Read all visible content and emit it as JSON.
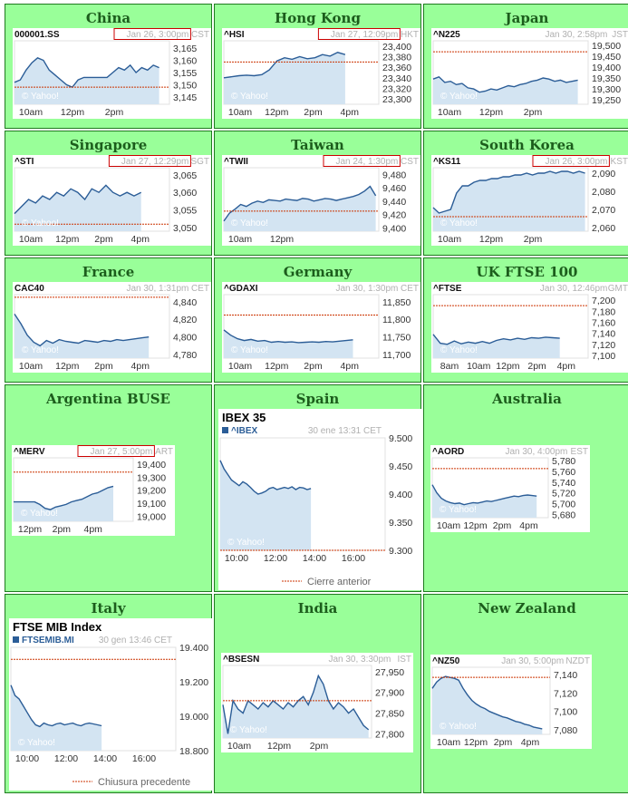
{
  "colors": {
    "cell_background": "#99ff99",
    "title_text": "#1c5d1c",
    "line": "#2b5d97",
    "fill": "#d3e4f2",
    "previous_close": "#cc3300",
    "highlight_box": "#cc0000"
  },
  "cells": [
    {
      "title": "China",
      "symbol": "000001.SS",
      "time": "Jan 26, 3:00pm",
      "tz": "CST",
      "highlight": true,
      "watermark": "© Yahoo!",
      "chart_data": {
        "type": "area",
        "title": "",
        "ylim": [
          3142,
          3168
        ],
        "xlabels": [
          "10am",
          "12pm",
          "2pm"
        ],
        "yticks": [
          "3,165",
          "3,160",
          "3,155",
          "3,150",
          "3,145"
        ],
        "ytick_values": [
          3165,
          3160,
          3155,
          3150,
          3145
        ],
        "previous_close": 3149,
        "values": [
          3151,
          3152,
          3156,
          3159,
          3161,
          3160,
          3156,
          3154,
          3152,
          3150,
          3149,
          3152,
          3153,
          3153,
          3153,
          3153,
          3153,
          3155,
          3157,
          3156,
          3158,
          3155,
          3157,
          3156,
          3158,
          3157
        ]
      }
    },
    {
      "title": "Hong Kong",
      "symbol": "^HSI",
      "time": "Jan 27, 12:09pm",
      "tz": "HKT",
      "highlight": true,
      "watermark": "© Yahoo!",
      "chart_data": {
        "type": "area",
        "title": "",
        "ylim": [
          23290,
          23410
        ],
        "xlabels": [
          "10am",
          "12pm",
          "2pm",
          "4pm"
        ],
        "yticks": [
          "23,400",
          "23,380",
          "23,360",
          "23,340",
          "23,320",
          "23,300"
        ],
        "ytick_values": [
          23400,
          23380,
          23360,
          23340,
          23320,
          23300
        ],
        "previous_close": 23370,
        "values": [
          23340,
          23342,
          23344,
          23345,
          23344,
          23346,
          23355,
          23372,
          23378,
          23375,
          23380,
          23376,
          23378,
          23384,
          23381,
          23388,
          23384
        ]
      }
    },
    {
      "title": "Japan",
      "symbol": "^N225",
      "time": "Jan 30, 2:58pm",
      "tz": "JST",
      "highlight": false,
      "watermark": "© Yahoo!",
      "chart_data": {
        "type": "area",
        "title": "",
        "ylim": [
          19230,
          19520
        ],
        "xlabels": [
          "10am",
          "12pm",
          "2pm"
        ],
        "yticks": [
          "19,500",
          "19,450",
          "19,400",
          "19,350",
          "19,300",
          "19,250"
        ],
        "ytick_values": [
          19500,
          19450,
          19400,
          19350,
          19300,
          19250
        ],
        "previous_close": 19470,
        "values": [
          19345,
          19355,
          19330,
          19335,
          19320,
          19325,
          19305,
          19300,
          19285,
          19290,
          19300,
          19295,
          19305,
          19315,
          19310,
          19320,
          19325,
          19335,
          19340,
          19350,
          19345,
          19335,
          19340,
          19330,
          19335,
          19340
        ]
      }
    },
    {
      "title": "Singapore",
      "symbol": "^STI",
      "time": "Jan 27, 12:29pm",
      "tz": "SGT",
      "highlight": true,
      "watermark": "© Yahoo!",
      "chart_data": {
        "type": "area",
        "title": "",
        "ylim": [
          3049,
          3067
        ],
        "xlabels": [
          "10am",
          "12pm",
          "2pm",
          "4pm"
        ],
        "yticks": [
          "3,065",
          "3,060",
          "3,055",
          "3,050"
        ],
        "ytick_values": [
          3065,
          3060,
          3055,
          3050
        ],
        "previous_close": 3051,
        "values": [
          3054,
          3056,
          3058,
          3057,
          3059,
          3058,
          3060,
          3059,
          3061,
          3060,
          3058,
          3061,
          3060,
          3062,
          3060,
          3059,
          3060,
          3059,
          3060
        ]
      }
    },
    {
      "title": "Taiwan",
      "symbol": "^TWII",
      "time": "Jan 24, 1:30pm",
      "tz": "CST",
      "highlight": true,
      "watermark": "© Yahoo!",
      "chart_data": {
        "type": "area",
        "title": "",
        "ylim": [
          9395,
          9490
        ],
        "xlabels": [
          "10am",
          "12pm"
        ],
        "yticks": [
          "9,480",
          "9,460",
          "9,440",
          "9,420",
          "9,400"
        ],
        "ytick_values": [
          9480,
          9460,
          9440,
          9420,
          9400
        ],
        "previous_close": 9425,
        "values": [
          9410,
          9422,
          9428,
          9435,
          9432,
          9437,
          9440,
          9438,
          9442,
          9441,
          9440,
          9443,
          9442,
          9441,
          9444,
          9443,
          9440,
          9442,
          9444,
          9443,
          9441,
          9443,
          9445,
          9447,
          9450,
          9455,
          9462,
          9448
        ]
      }
    },
    {
      "title": "South Korea",
      "symbol": "^KS11",
      "time": "Jan 26, 3:00pm",
      "tz": "KST",
      "highlight": true,
      "watermark": "© Yahoo!",
      "chart_data": {
        "type": "area",
        "title": "",
        "ylim": [
          2058,
          2093
        ],
        "xlabels": [
          "10am",
          "12pm",
          "2pm"
        ],
        "yticks": [
          "2,090",
          "2,080",
          "2,070",
          "2,060"
        ],
        "ytick_values": [
          2090,
          2080,
          2070,
          2060
        ],
        "previous_close": 2066,
        "values": [
          2071,
          2068,
          2069,
          2070,
          2079,
          2083,
          2083,
          2085,
          2086,
          2086,
          2087,
          2087,
          2088,
          2088,
          2089,
          2089,
          2090,
          2089,
          2090,
          2090,
          2091,
          2090,
          2091,
          2091,
          2090,
          2091,
          2090
        ]
      }
    },
    {
      "title": "France",
      "symbol": "CAC40",
      "time": "Jan 30, 1:31pm",
      "tz": "CET",
      "highlight": false,
      "watermark": "© Yahoo!",
      "chart_data": {
        "type": "area",
        "title": "",
        "ylim": [
          4776,
          4848
        ],
        "xlabels": [
          "10am",
          "12pm",
          "2pm",
          "4pm"
        ],
        "yticks": [
          "4,840",
          "4,820",
          "4,800",
          "4,780"
        ],
        "ytick_values": [
          4840,
          4820,
          4800,
          4780
        ],
        "previous_close": 4845,
        "values": [
          4826,
          4815,
          4802,
          4794,
          4790,
          4796,
          4793,
          4797,
          4795,
          4794,
          4793,
          4796,
          4795,
          4794,
          4796,
          4795,
          4797,
          4796,
          4797,
          4798,
          4799,
          4800
        ]
      }
    },
    {
      "title": "Germany",
      "symbol": "^GDAXI",
      "time": "Jan 30, 1:30pm",
      "tz": "CET",
      "highlight": false,
      "watermark": "© Yahoo!",
      "chart_data": {
        "type": "area",
        "title": "",
        "ylim": [
          11690,
          11870
        ],
        "xlabels": [
          "10am",
          "12pm",
          "2pm",
          "4pm"
        ],
        "yticks": [
          "11,850",
          "11,800",
          "11,750",
          "11,700"
        ],
        "ytick_values": [
          11850,
          11800,
          11750,
          11700
        ],
        "previous_close": 11812,
        "values": [
          11770,
          11755,
          11745,
          11740,
          11743,
          11738,
          11740,
          11735,
          11737,
          11735,
          11736,
          11734,
          11735,
          11736,
          11735,
          11737,
          11736,
          11738,
          11740,
          11742
        ]
      }
    },
    {
      "title": "UK FTSE 100",
      "symbol": "^FTSE",
      "time": "Jan 30, 12:46pm",
      "tz": "GMT",
      "highlight": false,
      "watermark": "© Yahoo!",
      "chart_data": {
        "type": "area",
        "title": "",
        "ylim": [
          7095,
          7210
        ],
        "xlabels": [
          "8am",
          "10am",
          "12pm",
          "2pm",
          "4pm"
        ],
        "yticks": [
          "7,200",
          "7,180",
          "7,160",
          "7,140",
          "7,120",
          "7,100"
        ],
        "ytick_values": [
          7200,
          7180,
          7160,
          7140,
          7120,
          7100
        ],
        "previous_close": 7190,
        "values": [
          7138,
          7122,
          7120,
          7126,
          7121,
          7124,
          7122,
          7125,
          7122,
          7127,
          7130,
          7128,
          7131,
          7129,
          7132,
          7131,
          7133,
          7132,
          7131
        ]
      }
    },
    {
      "title": "Argentina BUSE",
      "symbol": "^MERV",
      "time": "Jan 27, 5:00pm",
      "tz": "ART",
      "highlight": true,
      "watermark": "© Yahoo!",
      "chart_data": {
        "type": "area",
        "title": "",
        "ylim": [
          18960,
          19450
        ],
        "xlabels": [
          "12pm",
          "2pm",
          "4pm"
        ],
        "yticks": [
          "19,400",
          "19,300",
          "19,200",
          "19,100",
          "19,000"
        ],
        "ytick_values": [
          19400,
          19300,
          19200,
          19100,
          19000
        ],
        "previous_close": 19340,
        "values": [
          19110,
          19110,
          19110,
          19110,
          19110,
          19090,
          19060,
          19050,
          19070,
          19080,
          19090,
          19110,
          19120,
          19130,
          19150,
          19170,
          19180,
          19200,
          19220,
          19230
        ]
      }
    },
    {
      "title": "Spain",
      "chart_title": "IBEX 35",
      "symbol": "^IBEX",
      "time": "30 ene 13:31 CET",
      "tz": "",
      "highlight": false,
      "watermark": "© Yahoo!",
      "legend": "Cierre anterior",
      "chart_data": {
        "type": "area",
        "title": "IBEX 35",
        "ylim": [
          9300,
          9500
        ],
        "xlabels": [
          "10:00",
          "12:00",
          "14:00",
          "16:00"
        ],
        "yticks": [
          "9.500",
          "9.450",
          "9.400",
          "9.350",
          "9.300"
        ],
        "ytick_values": [
          9500,
          9450,
          9400,
          9350,
          9300
        ],
        "previous_close": 9300,
        "values": [
          9460,
          9445,
          9435,
          9425,
          9420,
          9415,
          9422,
          9418,
          9412,
          9405,
          9400,
          9402,
          9405,
          9410,
          9412,
          9408,
          9410,
          9412,
          9410,
          9413,
          9408,
          9412,
          9411,
          9408,
          9410
        ]
      }
    },
    {
      "title": "Australia",
      "symbol": "^AORD",
      "time": "Jan 30, 4:00pm",
      "tz": "EST",
      "highlight": false,
      "watermark": "© Yahoo!",
      "chart_data": {
        "type": "area",
        "title": "",
        "ylim": [
          5674,
          5785
        ],
        "xlabels": [
          "10am",
          "12pm",
          "2pm",
          "4pm"
        ],
        "yticks": [
          "5,780",
          "5,760",
          "5,740",
          "5,720",
          "5,700",
          "5,680"
        ],
        "ytick_values": [
          5780,
          5760,
          5740,
          5720,
          5700,
          5680
        ],
        "previous_close": 5765,
        "values": [
          5735,
          5720,
          5710,
          5705,
          5702,
          5700,
          5701,
          5698,
          5700,
          5702,
          5701,
          5703,
          5705,
          5704,
          5706,
          5708,
          5710,
          5712,
          5714,
          5713,
          5715,
          5716,
          5715,
          5714
        ]
      }
    },
    {
      "title": "Italy",
      "chart_title": "FTSE MIB Index",
      "symbol": "FTSEMIB.MI",
      "time": "30 gen 13:46 CET",
      "tz": "",
      "highlight": false,
      "watermark": "© Yahoo!",
      "legend": "Chiusura precedente",
      "chart_data": {
        "type": "area",
        "title": "FTSE MIB Index",
        "ylim": [
          18800,
          19400
        ],
        "xlabels": [
          "10:00",
          "12:00",
          "14:00",
          "16:00"
        ],
        "yticks": [
          "19.400",
          "19.200",
          "19.000",
          "18.800"
        ],
        "ytick_values": [
          19400,
          19200,
          19000,
          18800
        ],
        "previous_close": 19330,
        "values": [
          19180,
          19120,
          19100,
          19060,
          19020,
          18980,
          18950,
          18940,
          18960,
          18950,
          18945,
          18955,
          18960,
          18950,
          18955,
          18960,
          18950,
          18945,
          18955,
          18960,
          18955,
          18950,
          18945
        ]
      }
    },
    {
      "title": "India",
      "symbol": "^BSESN",
      "time": "Jan 30, 3:30pm",
      "tz": "IST",
      "highlight": false,
      "watermark": "© Yahoo!",
      "chart_data": {
        "type": "area",
        "title": "",
        "ylim": [
          27790,
          27965
        ],
        "xlabels": [
          "10am",
          "12pm",
          "2pm"
        ],
        "yticks": [
          "27,950",
          "27,900",
          "27,850",
          "27,800"
        ],
        "ytick_values": [
          27950,
          27900,
          27850,
          27800
        ],
        "previous_close": 27880,
        "values": [
          27870,
          27800,
          27880,
          27860,
          27850,
          27880,
          27870,
          27860,
          27875,
          27865,
          27880,
          27870,
          27860,
          27875,
          27865,
          27880,
          27890,
          27870,
          27900,
          27940,
          27920,
          27880,
          27860,
          27875,
          27865,
          27850,
          27860,
          27840,
          27820,
          27810
        ]
      }
    },
    {
      "title": "New Zealand",
      "symbol": "^NZ50",
      "time": "Jan 30, 5:00pm",
      "tz": "NZDT",
      "highlight": false,
      "watermark": "© Yahoo!",
      "chart_data": {
        "type": "area",
        "title": "",
        "ylim": [
          7075,
          7148
        ],
        "xlabels": [
          "10am",
          "12pm",
          "2pm",
          "4pm"
        ],
        "yticks": [
          "7,140",
          "7,120",
          "7,100",
          "7,080"
        ],
        "ytick_values": [
          7140,
          7120,
          7100,
          7080
        ],
        "previous_close": 7137,
        "values": [
          7125,
          7132,
          7136,
          7138,
          7137,
          7136,
          7134,
          7125,
          7118,
          7112,
          7108,
          7105,
          7103,
          7100,
          7098,
          7096,
          7094,
          7093,
          7091,
          7089,
          7088,
          7086,
          7085,
          7083,
          7082,
          7081
        ]
      }
    }
  ]
}
